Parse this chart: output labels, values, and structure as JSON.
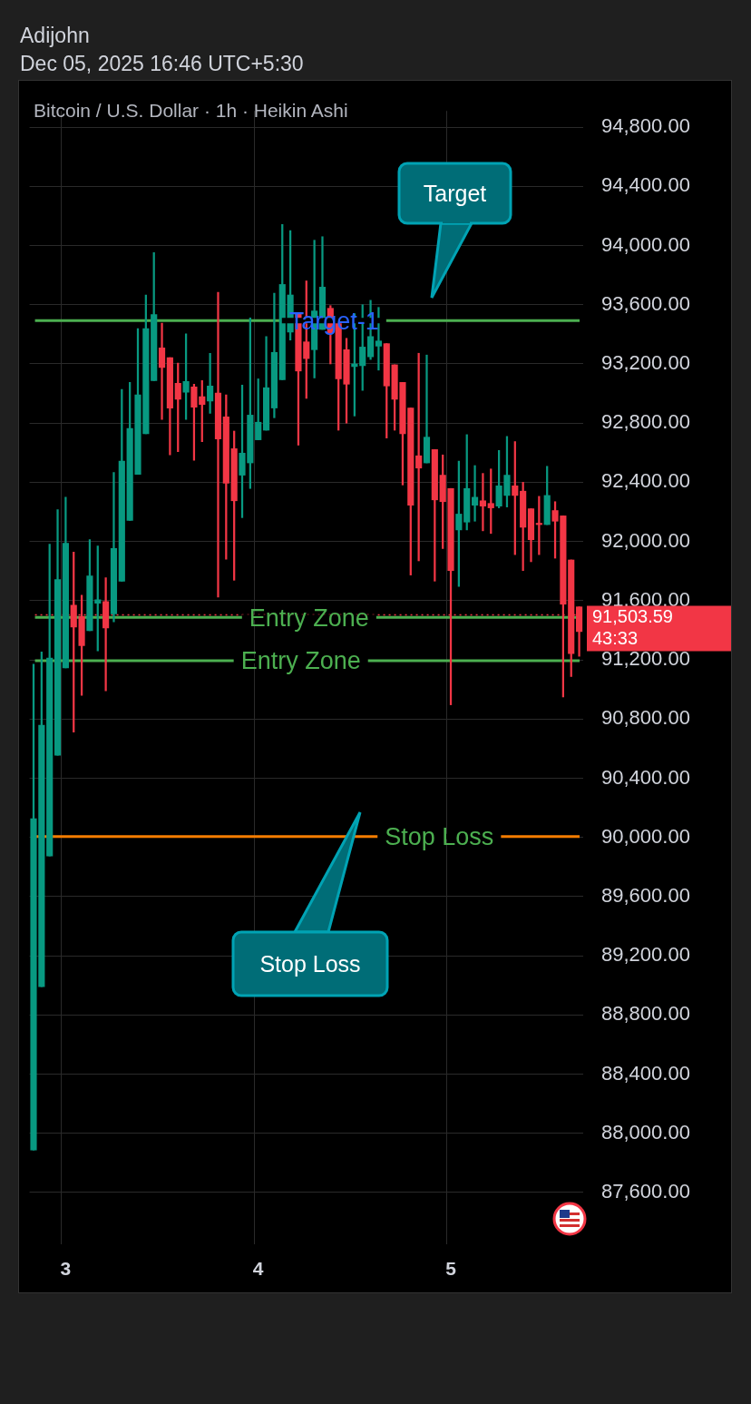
{
  "chart_data": {
    "type": "candlestick",
    "title": "Bitcoin / U.S. Dollar · 1h · Heikin Ashi",
    "categories": [
      null,
      null,
      null,
      null,
      "3",
      null,
      null,
      null,
      null,
      null,
      null,
      null,
      null,
      null,
      null,
      null,
      null,
      null,
      null,
      null,
      null,
      null,
      null,
      null,
      null,
      null,
      null,
      null,
      "4",
      null,
      null,
      null,
      null,
      null,
      null,
      null,
      null,
      null,
      null,
      null,
      null,
      null,
      null,
      null,
      null,
      null,
      null,
      null,
      null,
      null,
      null,
      null,
      "5",
      null,
      null,
      null,
      null,
      null,
      null,
      null,
      null,
      null,
      null,
      null,
      null,
      null,
      null,
      null,
      null
    ],
    "ohlc": [
      [
        87887,
        91170,
        87887,
        90126
      ],
      [
        88991,
        91254,
        88991,
        90758
      ],
      [
        89875,
        91982,
        89875,
        91212
      ],
      [
        90555,
        92215,
        90555,
        91743
      ],
      [
        91146,
        92299,
        91146,
        91988
      ],
      [
        91570,
        91928,
        90711,
        91421
      ],
      [
        91493,
        91637,
        90960,
        91296
      ],
      [
        91397,
        92012,
        91397,
        91767
      ],
      [
        91582,
        91970,
        91260,
        91606
      ],
      [
        91594,
        91755,
        90990,
        91415
      ],
      [
        91510,
        92466,
        91457,
        91952
      ],
      [
        91731,
        93027,
        91731,
        92543
      ],
      [
        92143,
        93075,
        92143,
        92764
      ],
      [
        92454,
        93439,
        92454,
        92991
      ],
      [
        92728,
        93666,
        92728,
        93439
      ],
      [
        93087,
        93952,
        93087,
        93534
      ],
      [
        93308,
        93475,
        92824,
        93176
      ],
      [
        93242,
        93242,
        92585,
        92902
      ],
      [
        93069,
        93206,
        92607,
        92961
      ],
      [
        93009,
        93403,
        92824,
        93081
      ],
      [
        93045,
        93063,
        92549,
        92908
      ],
      [
        92979,
        93087,
        92675,
        92926
      ],
      [
        92949,
        93272,
        92866,
        93051
      ],
      [
        93003,
        93684,
        91624,
        92693
      ],
      [
        92842,
        92991,
        91880,
        92394
      ],
      [
        92627,
        92746,
        91738,
        92275
      ],
      [
        92448,
        93057,
        92161,
        92597
      ],
      [
        92531,
        93511,
        92358,
        92854
      ],
      [
        92687,
        93099,
        92687,
        92806
      ],
      [
        92752,
        93385,
        92752,
        93039
      ],
      [
        92902,
        93678,
        92836,
        93278
      ],
      [
        93093,
        94143,
        93093,
        93737
      ],
      [
        93415,
        94101,
        93361,
        93666
      ],
      [
        93540,
        93540,
        92651,
        93152
      ],
      [
        93349,
        93761,
        92967,
        93236
      ],
      [
        93296,
        94036,
        93105,
        93558
      ],
      [
        93433,
        94060,
        93433,
        93719
      ],
      [
        93576,
        93594,
        93200,
        93409
      ],
      [
        93493,
        93493,
        92752,
        93099
      ],
      [
        93296,
        93373,
        92800,
        93063
      ],
      [
        93182,
        93540,
        92848,
        93200
      ],
      [
        93188,
        93600,
        93021,
        93314
      ],
      [
        93248,
        93630,
        93230,
        93385
      ],
      [
        93320,
        93582,
        93158,
        93355
      ],
      [
        93337,
        93337,
        92699,
        93051
      ],
      [
        93194,
        93194,
        92752,
        92961
      ],
      [
        93075,
        93075,
        92382,
        92728
      ],
      [
        92902,
        92902,
        91773,
        92245
      ],
      [
        92579,
        93272,
        91869,
        92496
      ],
      [
        92531,
        93260,
        92531,
        92705
      ],
      [
        92621,
        92621,
        91732,
        92281
      ],
      [
        92448,
        92585,
        91952,
        92269
      ],
      [
        92358,
        92358,
        90896,
        91803
      ],
      [
        92078,
        92543,
        91696,
        92185
      ],
      [
        92131,
        92722,
        92078,
        92358
      ],
      [
        92245,
        92513,
        92137,
        92299
      ],
      [
        92275,
        92460,
        92072,
        92239
      ],
      [
        92257,
        92490,
        92054,
        92227
      ],
      [
        92239,
        92615,
        92227,
        92376
      ],
      [
        92311,
        92710,
        92233,
        92448
      ],
      [
        92376,
        92675,
        91911,
        92311
      ],
      [
        92340,
        92400,
        91803,
        92096
      ],
      [
        92221,
        92221,
        91863,
        92012
      ],
      [
        92120,
        92305,
        91911,
        92114
      ],
      [
        92114,
        92508,
        92114,
        92311
      ],
      [
        92209,
        92269,
        91887,
        92137
      ],
      [
        92173,
        92173,
        90949,
        91576
      ],
      [
        91875,
        91875,
        91087,
        91242
      ],
      [
        91558,
        91558,
        91224,
        91391
      ]
    ],
    "colors": [
      "#089981",
      "#089981",
      "#089981",
      "#089981",
      "#089981",
      "#f23645",
      "#f23645",
      "#089981",
      "#089981",
      "#f23645",
      "#089981",
      "#089981",
      "#089981",
      "#089981",
      "#089981",
      "#089981",
      "#f23645",
      "#f23645",
      "#f23645",
      "#089981",
      "#f23645",
      "#f23645",
      "#089981",
      "#f23645",
      "#f23645",
      "#f23645",
      "#089981",
      "#089981",
      "#089981",
      "#089981",
      "#089981",
      "#089981",
      "#089981",
      "#f23645",
      "#f23645",
      "#089981",
      "#089981",
      "#f23645",
      "#f23645",
      "#f23645",
      "#089981",
      "#089981",
      "#089981",
      "#089981",
      "#f23645",
      "#f23645",
      "#f23645",
      "#f23645",
      "#f23645",
      "#089981",
      "#f23645",
      "#f23645",
      "#f23645",
      "#089981",
      "#089981",
      "#089981",
      "#f23645",
      "#f23645",
      "#089981",
      "#089981",
      "#f23645",
      "#f23645",
      "#f23645",
      "#f23645",
      "#089981",
      "#f23645",
      "#f23645",
      "#f23645",
      "#f23645"
    ],
    "ylim": [
      87250,
      94910
    ],
    "yticks": [
      {
        "value": 87600,
        "label": "87,600.00"
      },
      {
        "value": 88000,
        "label": "88,000.00"
      },
      {
        "value": 88400,
        "label": "88,400.00"
      },
      {
        "value": 88800,
        "label": "88,800.00"
      },
      {
        "value": 89200,
        "label": "89,200.00"
      },
      {
        "value": 89600,
        "label": "89,600.00"
      },
      {
        "value": 90000,
        "label": "90,000.00"
      },
      {
        "value": 90400,
        "label": "90,400.00"
      },
      {
        "value": 90800,
        "label": "90,800.00"
      },
      {
        "value": 91200,
        "label": "91,200.00"
      },
      {
        "value": 91600,
        "label": "91,600.00"
      },
      {
        "value": 92000,
        "label": "92,000.00"
      },
      {
        "value": 92400,
        "label": "92,400.00"
      },
      {
        "value": 92800,
        "label": "92,800.00"
      },
      {
        "value": 93200,
        "label": "93,200.00"
      },
      {
        "value": 93600,
        "label": "93,600.00"
      },
      {
        "value": 94000,
        "label": "94,000.00"
      },
      {
        "value": 94400,
        "label": "94,400.00"
      },
      {
        "value": 94800,
        "label": "94,800.00"
      }
    ],
    "ref_lines": [
      {
        "axis": "y",
        "value": 93493,
        "label": "Target-1",
        "color": "#4caf50"
      },
      {
        "axis": "y",
        "value": 91487,
        "label": "Entry Zone",
        "color": "#4caf50"
      },
      {
        "axis": "y",
        "value": 91194,
        "label": "Entry Zone",
        "color": "#4caf50"
      },
      {
        "axis": "y",
        "value": 90006,
        "label": "Stop Loss",
        "color": "#f57c00"
      },
      {
        "axis": "y",
        "value": 91503.59,
        "label": "91,503.59",
        "color": "#f23645",
        "line_style": "dotted"
      }
    ],
    "annotations": [
      "Adijohn",
      "Dec 05, 2025 16:46 UTC+5:30",
      "Target",
      "Stop Loss",
      "43:33"
    ],
    "grid": true,
    "legend": false
  }
}
